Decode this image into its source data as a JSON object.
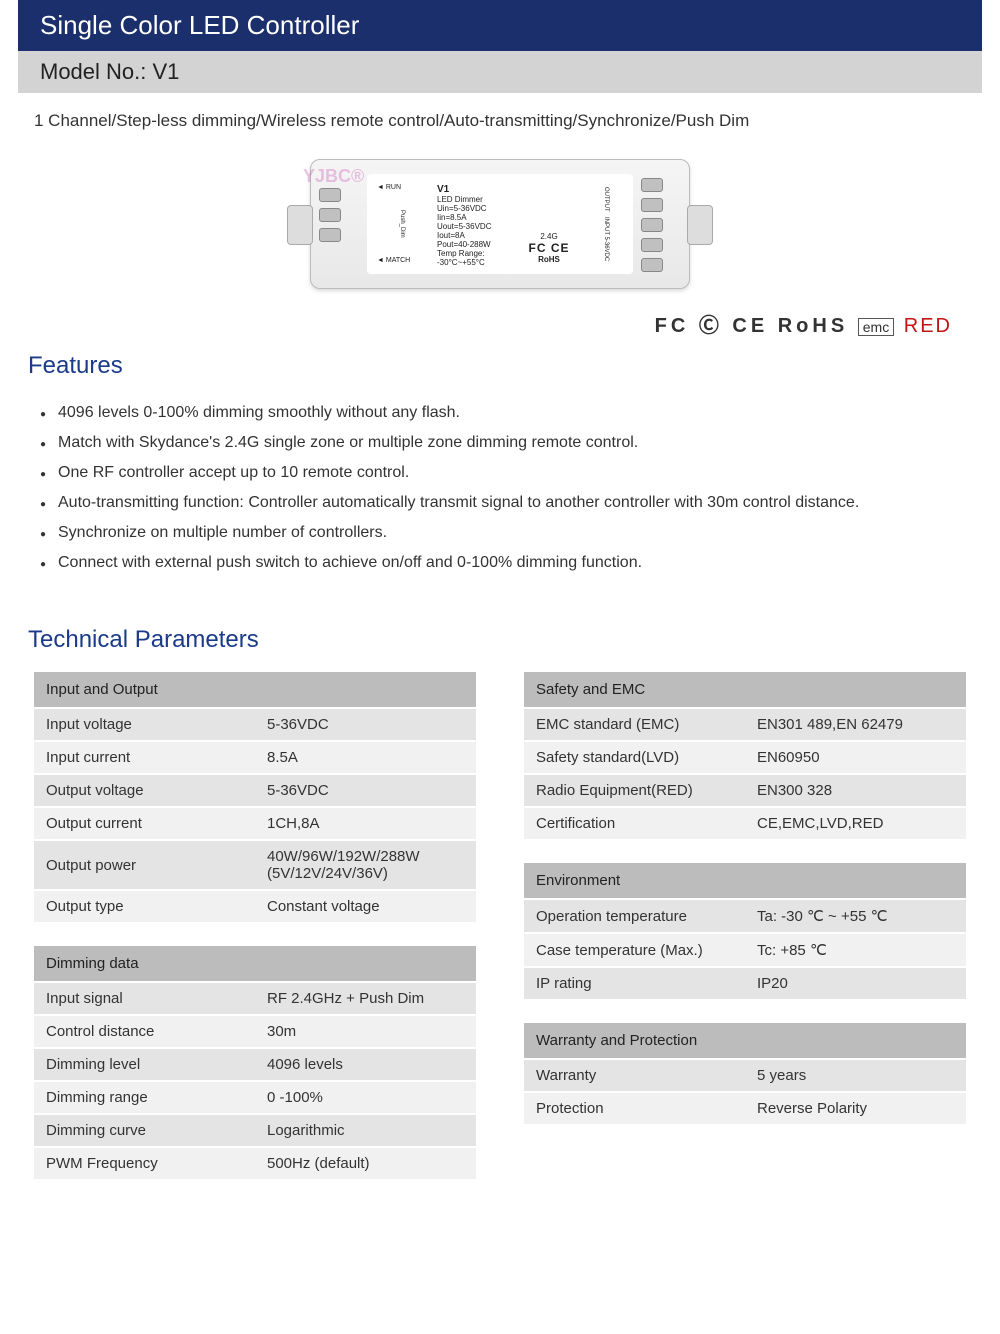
{
  "header": {
    "title": "Single Color LED Controller",
    "model_label": "Model No.: V1",
    "subtitle": "1 Channel/Step-less dimming/Wireless remote control/Auto-transmitting/Synchronize/Push Dim"
  },
  "product_label": {
    "watermark": "YJBC®",
    "name": "V1",
    "subname": "LED Dimmer",
    "line1": "Uin=5-36VDC",
    "line2": "Iin=8.5A",
    "line3": "Uout=5-36VDC",
    "line4": "Iout=8A",
    "line5": "Pout=40-288W",
    "line6": "Temp Range: -30°C~+55°C",
    "arrow_run": "◄ RUN",
    "arrow_match": "◄ MATCH",
    "push": "Push_Dim",
    "freq": "2.4G",
    "cert_inline": "FC CE",
    "rohs": "RoHS",
    "out_lbl": "OUTPUT",
    "in_lbl": "INPUT 5-36VDC"
  },
  "cert_row": {
    "items": "FC  Ⓒ  CE  RoHS",
    "emc": "emc",
    "red": "RED"
  },
  "sections": {
    "features_title": "Features",
    "tech_title": "Technical Parameters"
  },
  "features": [
    "4096 levels 0-100% dimming smoothly without any flash.",
    "Match with Skydance's 2.4G single zone or multiple zone dimming remote control.",
    "One RF controller accept up to 10 remote control.",
    "Auto-transmitting function: Controller automatically transmit signal to another controller with 30m control distance.",
    "Synchronize on multiple number of controllers.",
    "Connect with external push switch to achieve on/off and 0-100% dimming function."
  ],
  "tables": {
    "io": {
      "title": "Input and Output",
      "rows": [
        [
          "Input voltage",
          "5-36VDC"
        ],
        [
          "Input current",
          "8.5A"
        ],
        [
          "Output voltage",
          "5-36VDC"
        ],
        [
          "Output current",
          "1CH,8A"
        ],
        [
          "Output power",
          "40W/96W/192W/288W (5V/12V/24V/36V)"
        ],
        [
          "Output type",
          "Constant voltage"
        ]
      ]
    },
    "dimming": {
      "title": "Dimming data",
      "rows": [
        [
          "Input signal",
          "RF 2.4GHz + Push Dim"
        ],
        [
          "Control distance",
          "30m"
        ],
        [
          "Dimming level",
          "4096 levels"
        ],
        [
          "Dimming range",
          "0 -100%"
        ],
        [
          "Dimming curve",
          "Logarithmic"
        ],
        [
          "PWM Frequency",
          "500Hz (default)"
        ]
      ]
    },
    "safety": {
      "title": "Safety and EMC",
      "rows": [
        [
          "EMC standard (EMC)",
          "EN301 489,EN 62479"
        ],
        [
          "Safety standard(LVD)",
          "EN60950"
        ],
        [
          "Radio Equipment(RED)",
          "EN300 328"
        ],
        [
          "Certification",
          "CE,EMC,LVD,RED"
        ]
      ]
    },
    "env": {
      "title": "Environment",
      "rows": [
        [
          "Operation temperature",
          "Ta: -30 ℃ ~ +55 ℃"
        ],
        [
          "Case temperature (Max.)",
          "Tc: +85 ℃"
        ],
        [
          "IP rating",
          "IP20"
        ]
      ]
    },
    "warranty": {
      "title": "Warranty and Protection",
      "rows": [
        [
          "Warranty",
          "5 years"
        ],
        [
          "Protection",
          "Reverse Polarity"
        ]
      ]
    }
  }
}
